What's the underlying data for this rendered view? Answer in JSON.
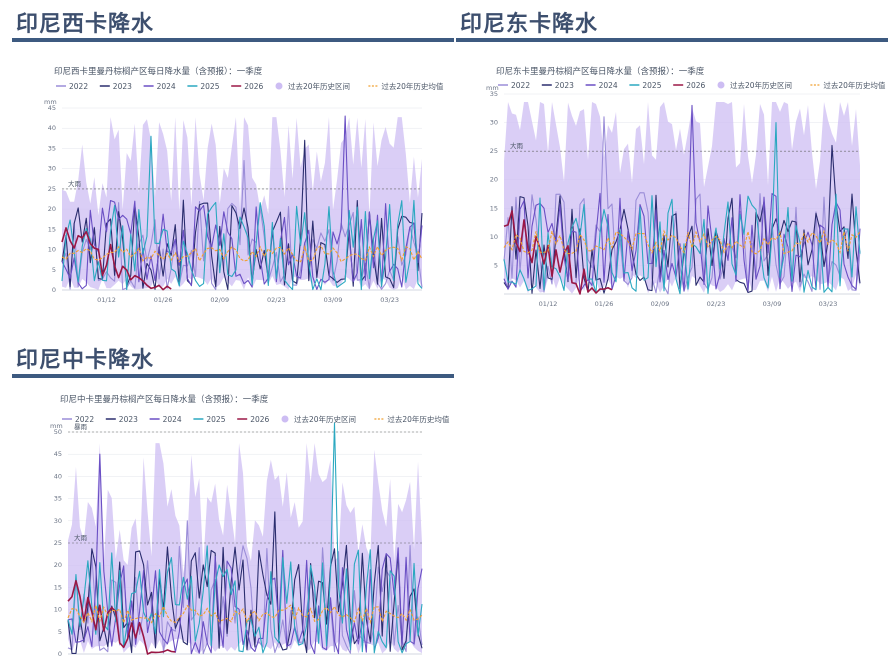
{
  "sections": [
    {
      "title": "印尼西卡降水",
      "chart_data": {
        "type": "line",
        "title": "印尼西卡里曼丹棕榈产区每日降水量（含预报）：一季度",
        "ylabel": "mm",
        "y_ticks": [
          "0",
          "5",
          "10",
          "15",
          "20",
          "25",
          "30",
          "35",
          "40",
          "45"
        ],
        "ylim": [
          0,
          45
        ],
        "x_tick_labels": [
          "01/12",
          "01/26",
          "02/09",
          "02/23",
          "03/09",
          "03/23"
        ],
        "reference_lines": [
          {
            "label": "大雨",
            "value": 25
          }
        ],
        "legend": [
          "2022",
          "2023",
          "2024",
          "2025",
          "2026",
          "过去20年历史区间",
          "过去20年历史均值"
        ],
        "series_seeds": {
          "s2022": 11,
          "s2023": 23,
          "s2024": 37,
          "s2025": 51,
          "s2026": 71,
          "band": 97,
          "mean": 131
        },
        "peaks": {
          "s2025": [
            22,
            38
          ],
          "s2024": [
            70,
            43
          ],
          "s2023": [
            60,
            37
          ],
          "s2022": [
            45,
            32
          ]
        }
      }
    },
    {
      "title": "印尼东卡降水",
      "chart_data": {
        "type": "line",
        "title": "印尼东卡里曼丹棕榈产区每日降水量（含预报）：一季度",
        "ylabel": "mm",
        "y_ticks": [
          "5",
          "10",
          "15",
          "20",
          "25",
          "30",
          "35"
        ],
        "ylim": [
          0,
          35
        ],
        "x_tick_labels": [
          "01/12",
          "01/26",
          "02/09",
          "02/23",
          "03/09",
          "03/23"
        ],
        "reference_lines": [
          {
            "label": "大雨",
            "value": 25
          }
        ],
        "legend": [
          "2022",
          "2023",
          "2024",
          "2025",
          "2026",
          "过去20年历史区间",
          "过去20年历史均值"
        ],
        "series_seeds": {
          "s2022": 13,
          "s2023": 29,
          "s2024": 41,
          "s2025": 59,
          "s2026": 67,
          "band": 89,
          "mean": 113
        },
        "peaks": {
          "s2025": [
            68,
            30
          ],
          "s2024": [
            47,
            33
          ],
          "s2023": [
            82,
            26
          ],
          "s2022": [
            25,
            31
          ]
        }
      }
    },
    {
      "title": "印尼中卡降水",
      "chart_data": {
        "type": "line",
        "title": "印尼中卡里曼丹棕榈产区每日降水量（含预报）：一季度",
        "ylabel": "mm",
        "y_ticks": [
          "0",
          "5",
          "10",
          "15",
          "20",
          "25",
          "30",
          "35",
          "40",
          "45",
          "50"
        ],
        "ylim": [
          0,
          50
        ],
        "x_tick_labels": [
          "01/12",
          "01/26",
          "02/09",
          "02/23",
          "03/09",
          "03/23"
        ],
        "reference_lines": [
          {
            "label": "暴雨",
            "value": 50
          },
          {
            "label": "大雨",
            "value": 25
          }
        ],
        "legend": [
          "2022",
          "2023",
          "2024",
          "2025",
          "2026",
          "过去20年历史区间",
          "过去20年历史均值"
        ],
        "series_seeds": {
          "s2022": 17,
          "s2023": 31,
          "s2024": 43,
          "s2025": 53,
          "s2026": 79,
          "band": 101,
          "mean": 127
        },
        "peaks": {
          "s2025": [
            67,
            52
          ],
          "s2024": [
            8,
            45
          ],
          "s2023": [
            52,
            32
          ],
          "s2022": [
            30,
            30
          ]
        }
      }
    }
  ],
  "colors": {
    "s2022": "#9b8ed8",
    "s2023": "#2a2d6e",
    "s2024": "#6a4fc4",
    "s2025": "#2aa8c0",
    "s2026": "#9a1745",
    "band": "#cdbdf3",
    "mean": "#f0a030",
    "ref": "#666666",
    "grid": "#e3e6ec",
    "title_text": "#3d4f6e",
    "rule": "#3d5a80"
  }
}
